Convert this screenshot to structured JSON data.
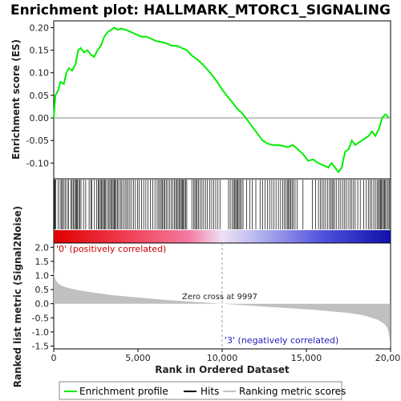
{
  "chart_data": {
    "type": "line",
    "title": "Enrichment plot: HALLMARK_MTORC1_SIGNALING",
    "top_panel": {
      "ylabel": "Enrichment score (ES)",
      "ylim": [
        -0.135,
        0.215
      ],
      "yticks": [
        0.2,
        0.15,
        0.1,
        0.05,
        0.0,
        -0.05,
        -0.1
      ],
      "ytick_labels": [
        "0.20",
        "0.15",
        "0.10",
        "0.05",
        "0.00",
        "-0.05",
        "-0.10"
      ],
      "series": [
        {
          "name": "Enrichment profile",
          "color": "#00ee00",
          "x": [
            0,
            100,
            250,
            400,
            600,
            750,
            900,
            1100,
            1300,
            1450,
            1600,
            1800,
            2000,
            2200,
            2400,
            2600,
            2800,
            3000,
            3200,
            3400,
            3600,
            3800,
            4000,
            4300,
            4600,
            4900,
            5200,
            5500,
            5800,
            6100,
            6400,
            6700,
            7000,
            7300,
            7600,
            7900,
            8200,
            8500,
            8800,
            9100,
            9400,
            9700,
            10000,
            10300,
            10600,
            10900,
            11200,
            11500,
            11800,
            12100,
            12400,
            12700,
            13000,
            13300,
            13600,
            13900,
            14200,
            14500,
            14800,
            15100,
            15400,
            15700,
            16000,
            16300,
            16500,
            16700,
            16900,
            17100,
            17300,
            17500,
            17700,
            17900,
            18100,
            18300,
            18500,
            18700,
            18900,
            19100,
            19300,
            19500,
            19700,
            19900
          ],
          "y": [
            0.0,
            0.05,
            0.06,
            0.08,
            0.075,
            0.1,
            0.11,
            0.105,
            0.12,
            0.15,
            0.155,
            0.145,
            0.15,
            0.14,
            0.135,
            0.15,
            0.16,
            0.18,
            0.19,
            0.195,
            0.2,
            0.195,
            0.198,
            0.195,
            0.19,
            0.185,
            0.18,
            0.18,
            0.175,
            0.17,
            0.168,
            0.165,
            0.16,
            0.16,
            0.155,
            0.15,
            0.138,
            0.13,
            0.12,
            0.108,
            0.095,
            0.08,
            0.063,
            0.048,
            0.035,
            0.02,
            0.01,
            -0.005,
            -0.02,
            -0.035,
            -0.05,
            -0.057,
            -0.06,
            -0.06,
            -0.062,
            -0.065,
            -0.06,
            -0.07,
            -0.08,
            -0.095,
            -0.092,
            -0.1,
            -0.105,
            -0.11,
            -0.1,
            -0.11,
            -0.12,
            -0.11,
            -0.075,
            -0.07,
            -0.05,
            -0.06,
            -0.055,
            -0.05,
            -0.045,
            -0.04,
            -0.03,
            -0.04,
            -0.025,
            0.0,
            0.008,
            0.0
          ]
        }
      ]
    },
    "hits_panel": {
      "series_name": "Hits",
      "positions": [
        30,
        70,
        120,
        260,
        380,
        470,
        520,
        610,
        690,
        800,
        880,
        1030,
        1090,
        1170,
        1240,
        1300,
        1350,
        1410,
        1480,
        1550,
        1620,
        1770,
        1900,
        2100,
        2200,
        2260,
        2420,
        2550,
        2640,
        2700,
        2770,
        2840,
        2900,
        2960,
        3020,
        3080,
        3160,
        3260,
        3330,
        3400,
        3470,
        3530,
        3590,
        3650,
        3710,
        3780,
        3860,
        3960,
        4040,
        4140,
        4240,
        4330,
        4420,
        4520,
        4620,
        4740,
        4850,
        4970,
        5080,
        5210,
        5340,
        5470,
        5600,
        5740,
        5880,
        6010,
        6140,
        6230,
        6310,
        6390,
        6460,
        6530,
        6600,
        6680,
        6770,
        6870,
        6980,
        7070,
        7160,
        7240,
        7310,
        7380,
        7450,
        7520,
        7580,
        7640,
        7700,
        7760,
        7830,
        7900,
        8200,
        8300,
        8380,
        8450,
        8520,
        8600,
        8700,
        8800,
        8900,
        9010,
        9130,
        9260,
        9380,
        9500,
        9620,
        9750,
        9870,
        10380,
        10480,
        10600,
        10680,
        10750,
        10810,
        10870,
        10930,
        11000,
        11070,
        11150,
        11240,
        11460,
        11640,
        11780,
        12000,
        12250,
        12400,
        12550,
        12700,
        12820,
        12950,
        13080,
        13200,
        13340,
        13470,
        13600,
        13700,
        13790,
        13870,
        13940,
        14000,
        14070,
        14150,
        14230,
        14330,
        14460,
        14800,
        15350,
        15550,
        15720,
        15830,
        15940,
        16040,
        16140,
        16250,
        16370,
        16460,
        16530,
        16600,
        16680,
        16800,
        16930,
        17040,
        17150,
        17250,
        17350,
        17480,
        17600,
        17700,
        17800,
        17900,
        18050,
        18200,
        18400,
        18560,
        18680,
        18780,
        18890,
        19000,
        19100,
        19200,
        19280,
        19340,
        19400,
        19460,
        19520,
        19580,
        19640,
        19700,
        19780,
        19860,
        19940
      ]
    },
    "bottom_panel": {
      "ylabel": "Ranked list metric (Signal2Noise)",
      "xlabel": "Rank in Ordered Dataset",
      "xlim": [
        0,
        20000
      ],
      "xticks": [
        0,
        5000,
        10000,
        15000,
        20000
      ],
      "xtick_labels": [
        "0",
        "5,000",
        "10,000",
        "15,000",
        "20,000"
      ],
      "ylim": [
        -1.6,
        2.15
      ],
      "yticks": [
        2.0,
        1.5,
        1.0,
        0.5,
        0.0,
        -0.5,
        -1.0,
        -1.5
      ],
      "ytick_labels": [
        "2.0",
        "1.5",
        "1.0",
        "0.5",
        "0.0",
        "-0.5",
        "-1.0",
        "-1.5"
      ],
      "series_name": "Ranking metric scores",
      "metric_x": [
        0,
        50,
        150,
        300,
        500,
        800,
        1200,
        1700,
        2500,
        3500,
        5000,
        6500,
        8000,
        9000,
        9997,
        11000,
        12500,
        14000,
        15500,
        16500,
        17500,
        18300,
        18800,
        19200,
        19500,
        19700,
        19800,
        19870,
        19920,
        19960,
        19990
      ],
      "metric_y": [
        1.2,
        0.95,
        0.8,
        0.7,
        0.63,
        0.57,
        0.51,
        0.45,
        0.38,
        0.3,
        0.22,
        0.14,
        0.08,
        0.04,
        0.0,
        -0.04,
        -0.1,
        -0.16,
        -0.22,
        -0.27,
        -0.33,
        -0.4,
        -0.48,
        -0.56,
        -0.66,
        -0.76,
        -0.86,
        -0.98,
        -1.12,
        -1.32,
        -1.55
      ],
      "zero_cross": 9997,
      "annotations": {
        "positive": "'0' (positively correlated)",
        "negative": "'3' (negatively correlated)",
        "zero": "Zero cross at 9997"
      }
    },
    "legend": {
      "placement": "bottom",
      "items": [
        {
          "label": "Enrichment profile",
          "color": "#00ee00"
        },
        {
          "label": "Hits",
          "color": "#000000"
        },
        {
          "label": "Ranking metric scores",
          "color": "#c0c0c0"
        }
      ]
    },
    "colors": {
      "positive_band": "#ff0000",
      "negative_band": "#0000cc",
      "profile": "#00ee00",
      "metric_fill": "#c0c0c0"
    }
  }
}
